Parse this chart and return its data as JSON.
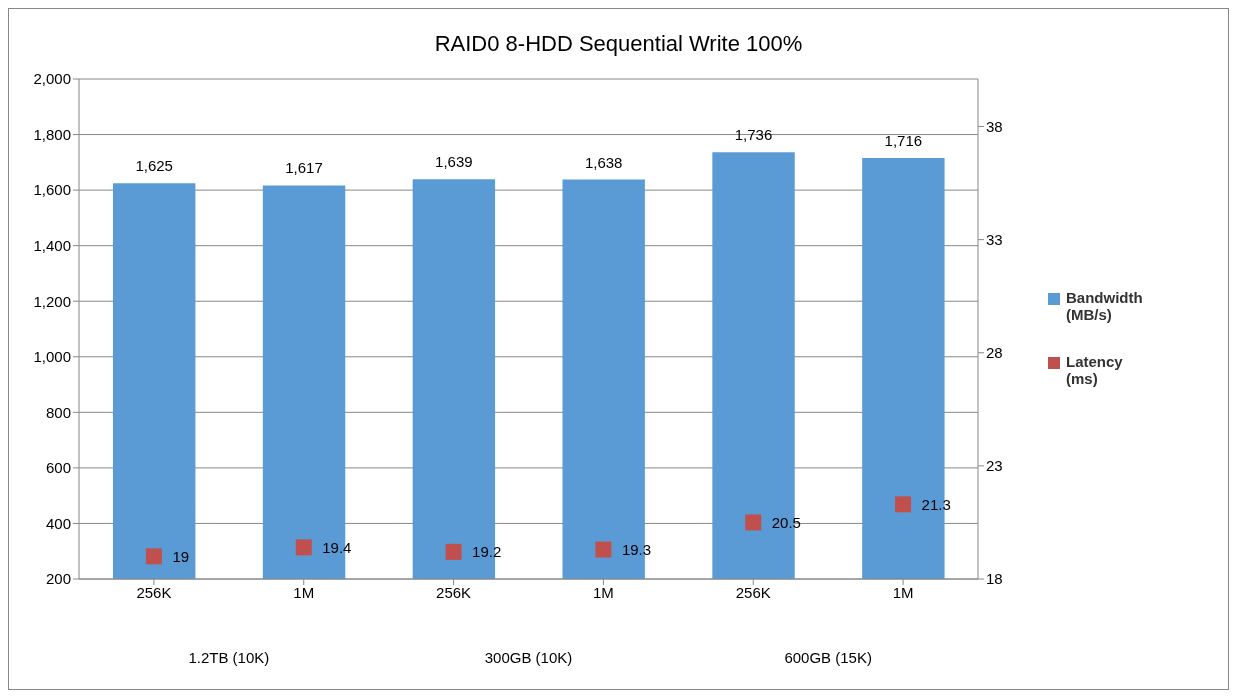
{
  "chart_data": {
    "type": "bar",
    "title": "RAID0 8-HDD Sequential Write 100%",
    "categories": [
      "256K",
      "1M",
      "256K",
      "1M",
      "256K",
      "1M"
    ],
    "series": [
      {
        "name": "Bandwidth (MB/s)",
        "color": "#5b9bd5",
        "values": [
          1625,
          1617,
          1639,
          1638,
          1736,
          1716
        ],
        "value_labels": [
          "1,625",
          "1,617",
          "1,639",
          "1,638",
          "1,736",
          "1,716"
        ]
      },
      {
        "name": "Latency (ms)",
        "type": "scatter",
        "axis": "y2",
        "color": "#c0504d",
        "marker": "square",
        "values": [
          19,
          19.4,
          19.2,
          19.3,
          20.5,
          21.3
        ]
      }
    ],
    "annotations": [
      "1.2TB (10K)",
      "300GB (10K)",
      "600GB (15K)"
    ],
    "ylim": [
      200,
      2000
    ],
    "yticks": [
      {
        "value": 200,
        "label": "200"
      },
      {
        "value": 400,
        "label": "400"
      },
      {
        "value": 600,
        "label": "600"
      },
      {
        "value": 800,
        "label": "800"
      },
      {
        "value": 1000,
        "label": "1,000"
      },
      {
        "value": 1200,
        "label": "1,200"
      },
      {
        "value": 1400,
        "label": "1,400"
      },
      {
        "value": 1600,
        "label": "1,600"
      },
      {
        "value": 1800,
        "label": "1,800"
      },
      {
        "value": 2000,
        "label": "2,000"
      }
    ],
    "y2lim": [
      18,
      40.1
    ],
    "y2ticks": [
      18,
      23,
      28,
      33,
      38
    ],
    "grid": "y",
    "legend": "right",
    "data_labels": true
  }
}
